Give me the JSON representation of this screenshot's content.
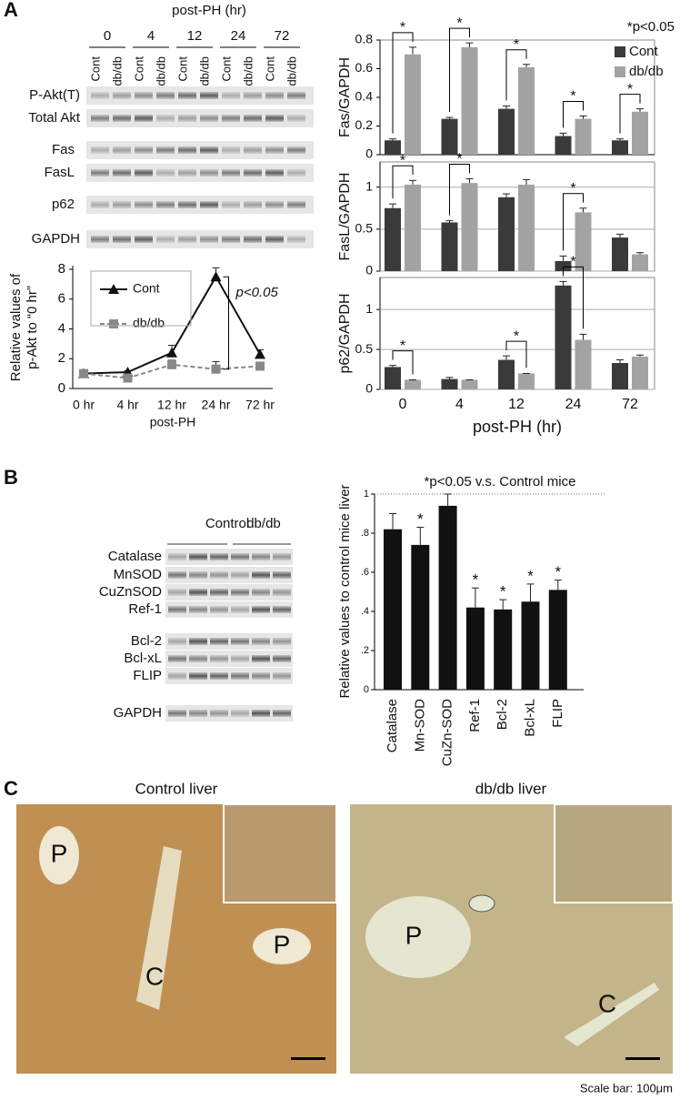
{
  "panel_labels": [
    "A",
    "B",
    "C"
  ],
  "blot_a": {
    "title": "post-PH (hr)",
    "times": [
      "0",
      "4",
      "12",
      "24",
      "72"
    ],
    "lanes": [
      "Cont",
      "db/db"
    ],
    "rows": [
      "P-Akt(T)",
      "Total Akt",
      "Fas",
      "FasL",
      "p62",
      "GAPDH"
    ]
  },
  "blot_b": {
    "groups": [
      "Control",
      "db/db"
    ],
    "rows": [
      "Catalase",
      "MnSOD",
      "CuZnSOD",
      "Ref-1",
      "Bcl-2",
      "Bcl-xL",
      "FLIP",
      "GAPDH"
    ]
  },
  "micrographs": {
    "left_title": "Control liver",
    "right_title": "db/db liver",
    "left_marks": [
      "P",
      "C",
      "P"
    ],
    "right_marks": [
      "P",
      "C"
    ],
    "scale_bar": "Scale bar: 100μm"
  },
  "chart_data": [
    {
      "type": "line",
      "ylabel": [
        "Relative values of",
        "p-Akt to “0 hr”"
      ],
      "xlabel": "post-PH",
      "categories": [
        "0 hr",
        "4 hr",
        "12 hr",
        "24 hr",
        "72 hr"
      ],
      "ylim": [
        0,
        8
      ],
      "yticks": [
        0,
        2,
        4,
        6,
        8
      ],
      "legend": "upper left",
      "annotation": "p<0.05",
      "series": [
        {
          "name": "Cont",
          "color": "#111111",
          "marker": "triangle",
          "values": [
            1,
            1.1,
            2.4,
            7.5,
            2.3
          ],
          "errors": [
            0.1,
            0.1,
            0.5,
            0.6,
            0.3
          ]
        },
        {
          "name": "db/db",
          "color": "#888888",
          "marker": "square",
          "dashed": true,
          "values": [
            1,
            0.7,
            1.6,
            1.3,
            1.5
          ],
          "errors": [
            0.1,
            0.1,
            0.3,
            0.5,
            0.2
          ]
        }
      ]
    },
    {
      "type": "bar",
      "xlabel": "post-PH (hr)",
      "categories": [
        "0",
        "4",
        "12",
        "24",
        "72"
      ],
      "note": "*p<0.05",
      "sig_label": "*",
      "legend": "upper right",
      "series": [
        {
          "name": "Cont",
          "color": "#3a3a3a"
        },
        {
          "name": "db/db",
          "color": "#a3a3a3"
        }
      ],
      "panels": [
        {
          "ylabel": "Fas/GAPDH",
          "ylim": [
            0,
            0.8
          ],
          "yticks": [
            0,
            0.2,
            0.4,
            0.6,
            0.8
          ],
          "grid": false,
          "values": [
            [
              0.1,
              0.25,
              0.32,
              0.13,
              0.1
            ],
            [
              0.7,
              0.75,
              0.61,
              0.25,
              0.3
            ]
          ],
          "errors": [
            [
              0.01,
              0.01,
              0.02,
              0.02,
              0.01
            ],
            [
              0.05,
              0.03,
              0.02,
              0.02,
              0.02
            ]
          ],
          "significant": [
            0,
            1,
            2,
            3,
            4
          ]
        },
        {
          "ylabel": "FasL/GAPDH",
          "ylim": [
            0,
            1.3
          ],
          "yticks": [
            0,
            0.5,
            1
          ],
          "grid": true,
          "values": [
            [
              0.75,
              0.58,
              0.88,
              0.12,
              0.4
            ],
            [
              1.03,
              1.05,
              1.03,
              0.7,
              0.2
            ]
          ],
          "errors": [
            [
              0.05,
              0.02,
              0.04,
              0.06,
              0.04
            ],
            [
              0.05,
              0.05,
              0.06,
              0.05,
              0.02
            ]
          ],
          "significant": [
            0,
            1,
            3
          ]
        },
        {
          "ylabel": "p62/GAPDH",
          "ylim": [
            0,
            1.4
          ],
          "yticks": [
            0,
            0.5,
            1
          ],
          "grid": true,
          "values": [
            [
              0.28,
              0.13,
              0.37,
              1.3,
              0.33
            ],
            [
              0.12,
              0.12,
              0.2,
              0.62,
              0.41
            ]
          ],
          "errors": [
            [
              0.02,
              0.02,
              0.05,
              0.05,
              0.04
            ],
            [
              0,
              0,
              0,
              0.07,
              0.02
            ]
          ],
          "significant": [
            0,
            2,
            3
          ]
        }
      ]
    },
    {
      "type": "bar",
      "title": "*p<0.05 v.s. Control mice",
      "ylabel": "Relative values to control mice liver",
      "sig_label": "*",
      "color": "#111111",
      "categories": [
        "Catalase",
        "Mn-SOD",
        "CuZn-SOD",
        "Ref-1",
        "Bcl-2",
        "Bcl-xL",
        "FLIP"
      ],
      "values": [
        0.82,
        0.74,
        0.94,
        0.42,
        0.41,
        0.45,
        0.51
      ],
      "errors": [
        0.08,
        0.09,
        0.06,
        0.1,
        0.05,
        0.09,
        0.05
      ],
      "significant": [
        1,
        3,
        4,
        5,
        6
      ],
      "ylim": [
        0,
        1
      ],
      "yticks": [
        0,
        {
          "value": 0.2,
          "label": ".2"
        },
        {
          "value": 0.4,
          "label": ".4"
        },
        {
          "value": 0.6,
          "label": ".6"
        },
        {
          "value": 0.8,
          "label": ".8"
        },
        1
      ]
    }
  ]
}
